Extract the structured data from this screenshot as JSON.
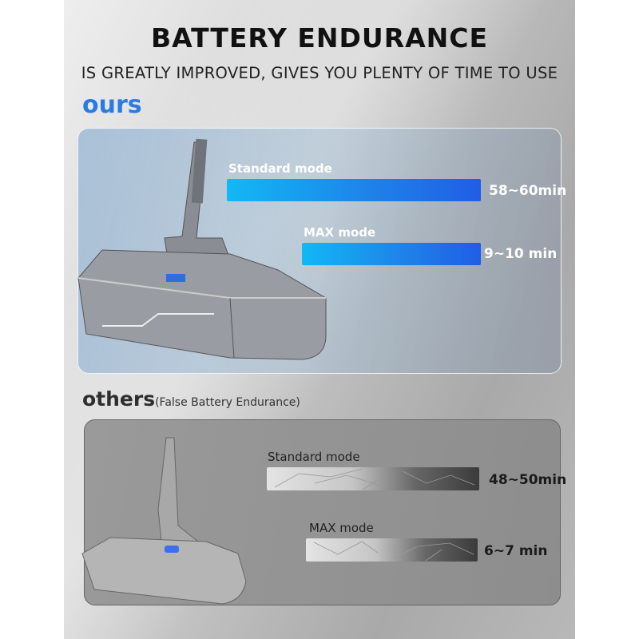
{
  "header": {
    "title": "BATTERY ENDURANCE",
    "subtitle": "IS GREATLY IMPROVED, GIVES YOU PLENTY OF TIME TO USE"
  },
  "ours": {
    "heading": "ours",
    "accent": "#2a7be0",
    "modes": [
      {
        "label": "Standard mode",
        "value": "58~60min"
      },
      {
        "label": "MAX mode",
        "value": "9~10 min"
      }
    ]
  },
  "others": {
    "heading": "others",
    "note": "(False Battery Endurance)",
    "modes": [
      {
        "label": "Standard mode",
        "value": "48~50min"
      },
      {
        "label": "MAX mode",
        "value": "6~7 min"
      }
    ]
  }
}
